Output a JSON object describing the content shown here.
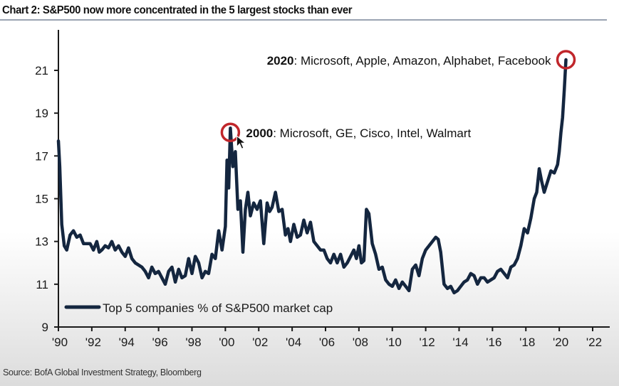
{
  "title": "Chart 2:  S&P500 now more concentrated in the 5 largest stocks than ever",
  "source": "Source:  BofA Global Investment Strategy, Bloomberg",
  "colors": {
    "line": "#14263f",
    "highlight_circle": "#c0262b",
    "axis": "#1a1a1a"
  },
  "chart_data": {
    "type": "line",
    "title": "Chart 2:  S&P500 now more concentrated in the 5 largest stocks than ever",
    "xlabel": "",
    "ylabel": "",
    "xlim": [
      1990,
      2023.5
    ],
    "ylim": [
      9,
      22.5
    ],
    "grid": false,
    "legend_position": "bottom-left",
    "x_ticks": [
      1990,
      1992,
      1994,
      1996,
      1998,
      2000,
      2002,
      2004,
      2006,
      2008,
      2010,
      2012,
      2014,
      2016,
      2018,
      2020,
      2022
    ],
    "x_tick_labels": [
      "'90",
      "'92",
      "'94",
      "'96",
      "'98",
      "'00",
      "'02",
      "'04",
      "'06",
      "'08",
      "'10",
      "'12",
      "'14",
      "'16",
      "'18",
      "'20",
      "'22"
    ],
    "y_ticks": [
      9,
      11,
      13,
      15,
      17,
      19,
      21
    ],
    "y_tick_labels": [
      "9",
      "11",
      "13",
      "15",
      "17",
      "19",
      "21"
    ],
    "series": [
      {
        "name": "Top 5 companies % of S&P500 market cap",
        "x": [
          1990.0,
          1990.08,
          1990.2,
          1990.35,
          1990.5,
          1990.7,
          1990.9,
          1991.1,
          1991.3,
          1991.5,
          1991.7,
          1991.9,
          1992.1,
          1992.3,
          1992.45,
          1992.6,
          1992.8,
          1993.0,
          1993.2,
          1993.4,
          1993.6,
          1993.8,
          1994.0,
          1994.2,
          1994.4,
          1994.6,
          1994.8,
          1995.0,
          1995.2,
          1995.4,
          1995.6,
          1995.8,
          1996.0,
          1996.2,
          1996.4,
          1996.6,
          1996.8,
          1997.0,
          1997.2,
          1997.4,
          1997.6,
          1997.8,
          1998.0,
          1998.2,
          1998.4,
          1998.6,
          1998.8,
          1999.0,
          1999.2,
          1999.4,
          1999.6,
          1999.8,
          2000.0,
          2000.1,
          2000.2,
          2000.3,
          2000.45,
          2000.6,
          2000.75,
          2000.9,
          2001.05,
          2001.2,
          2001.35,
          2001.5,
          2001.7,
          2001.9,
          2002.1,
          2002.3,
          2002.5,
          2002.65,
          2002.8,
          2003.0,
          2003.2,
          2003.4,
          2003.6,
          2003.75,
          2003.9,
          2004.1,
          2004.3,
          2004.5,
          2004.7,
          2004.9,
          2005.1,
          2005.3,
          2005.5,
          2005.7,
          2005.9,
          2006.1,
          2006.3,
          2006.5,
          2006.7,
          2006.9,
          2007.1,
          2007.3,
          2007.5,
          2007.7,
          2007.85,
          2008.0,
          2008.15,
          2008.3,
          2008.45,
          2008.6,
          2008.8,
          2009.0,
          2009.2,
          2009.4,
          2009.6,
          2009.8,
          2010.0,
          2010.2,
          2010.4,
          2010.6,
          2010.8,
          2011.0,
          2011.2,
          2011.4,
          2011.6,
          2011.8,
          2012.0,
          2012.2,
          2012.4,
          2012.6,
          2012.75,
          2012.9,
          2013.1,
          2013.3,
          2013.5,
          2013.7,
          2013.9,
          2014.1,
          2014.3,
          2014.5,
          2014.7,
          2014.9,
          2015.1,
          2015.3,
          2015.5,
          2015.7,
          2015.9,
          2016.1,
          2016.3,
          2016.5,
          2016.7,
          2016.9,
          2017.1,
          2017.3,
          2017.5,
          2017.7,
          2017.9,
          2018.1,
          2018.3,
          2018.5,
          2018.65,
          2018.8,
          2018.95,
          2019.1,
          2019.3,
          2019.5,
          2019.7,
          2019.9,
          2020.0,
          2020.1,
          2020.2,
          2020.3,
          2020.4
        ],
        "y": [
          17.7,
          16.5,
          13.8,
          12.8,
          12.6,
          13.3,
          13.5,
          13.2,
          13.3,
          12.9,
          12.9,
          12.9,
          12.6,
          13.0,
          12.5,
          12.6,
          12.8,
          12.7,
          13.0,
          12.6,
          12.8,
          12.5,
          12.3,
          12.7,
          12.2,
          12.0,
          11.9,
          11.8,
          11.6,
          11.3,
          11.8,
          11.5,
          11.6,
          11.3,
          11.0,
          11.6,
          11.8,
          11.1,
          11.7,
          11.3,
          11.4,
          12.2,
          11.5,
          12.3,
          12.0,
          11.3,
          11.6,
          11.5,
          12.4,
          12.2,
          13.5,
          12.6,
          13.7,
          16.8,
          15.5,
          18.3,
          16.5,
          17.2,
          14.5,
          14.9,
          12.5,
          14.5,
          15.3,
          14.2,
          14.8,
          14.5,
          14.9,
          12.9,
          14.8,
          14.4,
          14.6,
          15.3,
          14.4,
          14.5,
          13.3,
          13.6,
          13.0,
          13.8,
          13.2,
          13.3,
          14.0,
          13.4,
          13.9,
          13.0,
          12.8,
          12.6,
          12.6,
          12.2,
          12.0,
          12.4,
          12.0,
          12.4,
          11.8,
          12.0,
          12.3,
          12.6,
          12.2,
          12.8,
          12.0,
          12.1,
          14.5,
          14.3,
          12.9,
          12.4,
          11.7,
          11.8,
          11.2,
          11.0,
          10.9,
          11.2,
          10.8,
          11.1,
          10.9,
          10.7,
          11.7,
          11.9,
          11.4,
          12.2,
          12.6,
          12.8,
          13.0,
          13.2,
          13.1,
          12.5,
          11.0,
          10.8,
          10.9,
          10.6,
          10.7,
          10.9,
          11.1,
          11.2,
          11.5,
          11.4,
          11.0,
          11.3,
          11.3,
          11.1,
          11.2,
          11.3,
          11.6,
          11.7,
          11.5,
          11.3,
          11.8,
          11.9,
          12.2,
          12.8,
          13.6,
          13.4,
          14.1,
          15.0,
          15.3,
          16.4,
          15.8,
          15.3,
          15.8,
          16.3,
          16.2,
          16.6,
          17.2,
          18.1,
          18.8,
          20.1,
          21.5
        ],
        "color": "#14263f"
      }
    ],
    "annotations": [
      {
        "year_bold": "2000",
        "text": ": Microsoft, GE, Cisco, Intel, Walmart",
        "x": 2000.3,
        "y": 18.1
      },
      {
        "year_bold": "2020",
        "text": ": Microsoft, Apple, Amazon, Alphabet, Facebook",
        "x": 2020.4,
        "y": 21.5
      }
    ]
  }
}
